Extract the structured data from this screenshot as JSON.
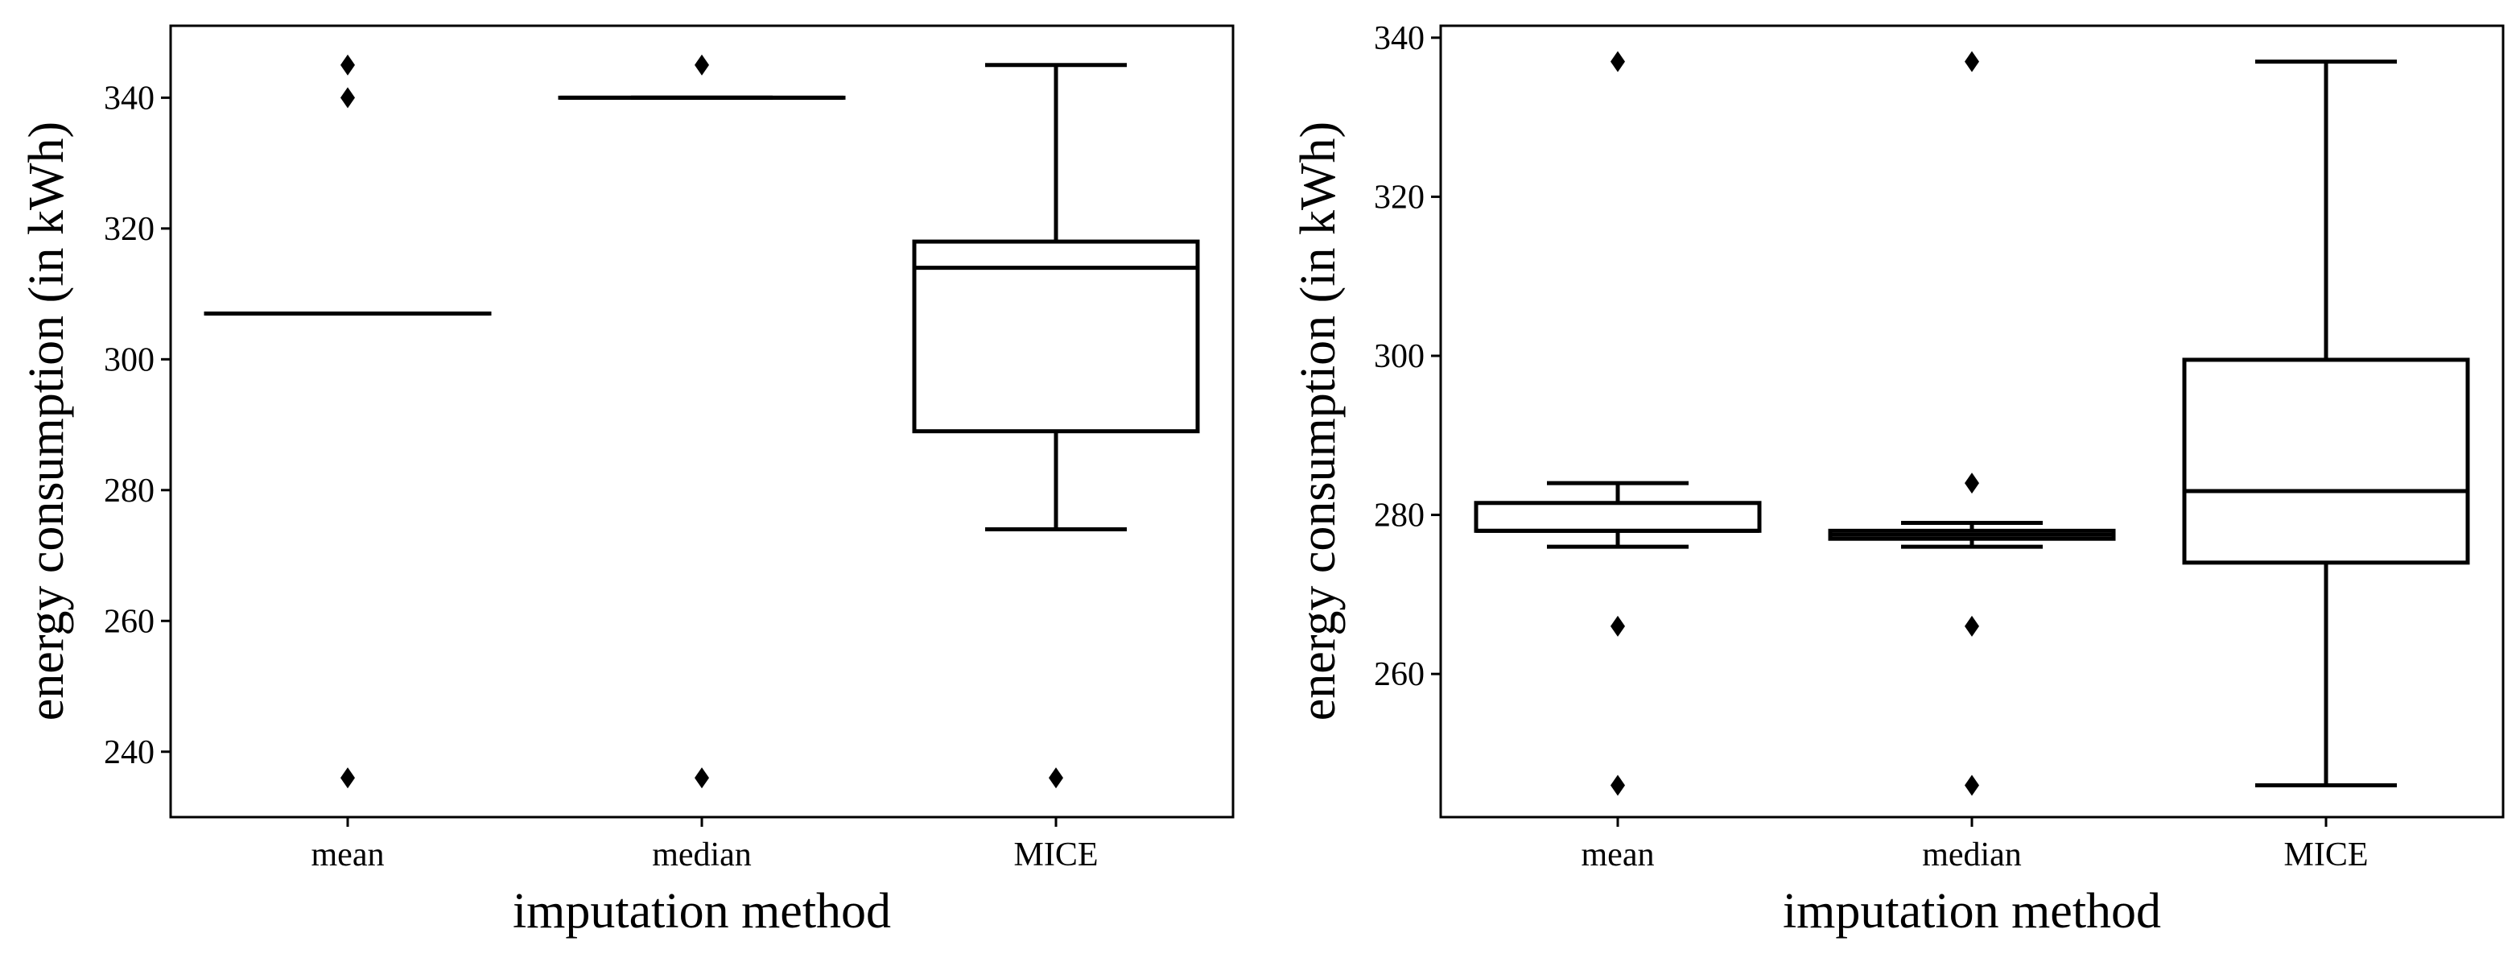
{
  "chart_data": [
    {
      "type": "box",
      "title": "",
      "xlabel": "imputation method",
      "ylabel": "energy consumption (in kWh)",
      "categories": [
        "mean",
        "median",
        "MICE"
      ],
      "ylim": [
        230,
        351
      ],
      "yticks": [
        240,
        260,
        280,
        300,
        320,
        340
      ],
      "tick_labels": [
        "240",
        "260",
        "280",
        "300",
        "320",
        "340"
      ],
      "boxes": [
        {
          "category": "mean",
          "whislo": 307,
          "q1": 307,
          "med": 307,
          "q3": 307,
          "whishi": 307,
          "fliers": [
            345,
            340,
            236
          ]
        },
        {
          "category": "median",
          "whislo": 340,
          "q1": 340,
          "med": 340,
          "q3": 340,
          "whishi": 340,
          "fliers": [
            345,
            236
          ]
        },
        {
          "category": "MICE",
          "whislo": 274,
          "q1": 289,
          "med": 314,
          "q3": 318,
          "whishi": 345,
          "fliers": [
            236
          ]
        }
      ]
    },
    {
      "type": "box",
      "title": "",
      "xlabel": "imputation method",
      "ylabel": "energy consumption (in kWh)",
      "categories": [
        "mean",
        "median",
        "MICE"
      ],
      "ylim": [
        242,
        341.5
      ],
      "yticks": [
        260,
        280,
        300,
        320,
        340
      ],
      "tick_labels": [
        "260",
        "280",
        "300",
        "320",
        "340"
      ],
      "boxes": [
        {
          "category": "mean",
          "whislo": 276,
          "q1": 278,
          "med": 278,
          "q3": 281.5,
          "whishi": 284,
          "fliers": [
            337,
            266,
            246
          ]
        },
        {
          "category": "median",
          "whislo": 276,
          "q1": 277,
          "med": 277.5,
          "q3": 278,
          "whishi": 279,
          "fliers": [
            337,
            284,
            266,
            246
          ]
        },
        {
          "category": "MICE",
          "whislo": 246,
          "q1": 274,
          "med": 283,
          "q3": 299.5,
          "whishi": 337,
          "fliers": []
        }
      ]
    }
  ]
}
